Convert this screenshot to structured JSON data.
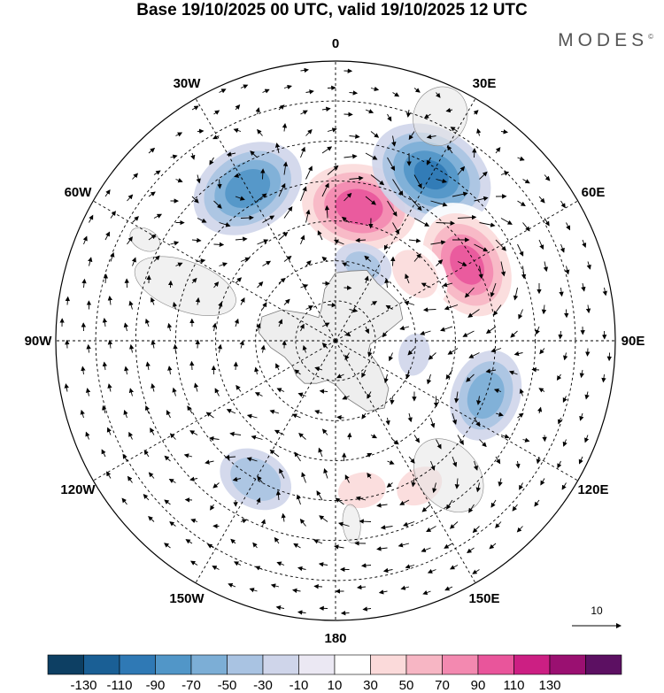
{
  "title": "Base 19/10/2025 00 UTC, valid 19/10/2025 12 UTC",
  "brand": "MODES",
  "brand_mark": "©",
  "longitude_labels": [
    "0",
    "30E",
    "60E",
    "90E",
    "120E",
    "150E",
    "180",
    "150W",
    "120W",
    "90W",
    "60W",
    "30W"
  ],
  "reference_vector": {
    "label": "10"
  },
  "colorbar": {
    "colors": [
      "#0d3f63",
      "#1a5f95",
      "#2f79b5",
      "#5196c8",
      "#7caed6",
      "#a9c3e2",
      "#cfd5ea",
      "#ebe8f3",
      "#ffffff",
      "#fbdada",
      "#f7b6c4",
      "#f389b0",
      "#e9559b",
      "#cc1f83",
      "#9a1071",
      "#5c1062"
    ],
    "labels": [
      "-130",
      "-110",
      "-90",
      "-70",
      "-50",
      "-30",
      "-10",
      "10",
      "30",
      "50",
      "70",
      "90",
      "110",
      "130"
    ]
  },
  "anomaly_centers": [
    {
      "lon": 10,
      "colat": 34,
      "value": 100
    },
    {
      "lon": 30,
      "colat": 48,
      "value": -90
    },
    {
      "lon": 60,
      "colat": 38,
      "value": 95
    },
    {
      "lon": -30,
      "colat": 44,
      "value": -80
    },
    {
      "lon": 110,
      "colat": 40,
      "value": -60
    },
    {
      "lon": 150,
      "colat": 42,
      "value": 40
    },
    {
      "lon": -150,
      "colat": 40,
      "value": -45
    },
    {
      "lon": 170,
      "colat": 38,
      "value": 40
    },
    {
      "lon": 50,
      "colat": 26,
      "value": 45
    },
    {
      "lon": 20,
      "colat": 20,
      "value": -30
    },
    {
      "lon": -70,
      "colat": 50,
      "value": 20
    },
    {
      "lon": -120,
      "colat": 28,
      "value": 15
    },
    {
      "lon": 100,
      "colat": 20,
      "value": -15
    }
  ]
}
